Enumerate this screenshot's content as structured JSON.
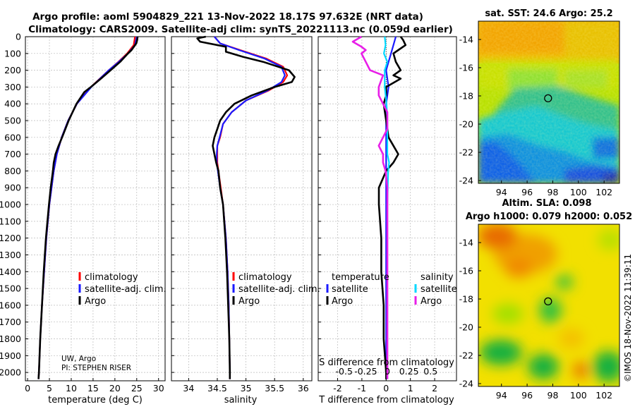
{
  "header": {
    "line1": "Argo profile: aoml 5904829_221 13-Nov-2022 18.17S 97.632E (NRT data)",
    "line2": "Climatology: CARS2009. Satellite-adj clim: synTS_20221113.nc (0.059d earlier)"
  },
  "side_label": "©IMOS 18-Nov-2022 11:39:11",
  "colors": {
    "climatology": "#ff0000",
    "satellite_clim": "#1a1aff",
    "argo": "#000000",
    "t_sat": "#1a1aff",
    "s_sat": "#00d8ff",
    "s_argo": "#e81ee8"
  },
  "chart_data": [
    {
      "id": "temperature",
      "type": "line",
      "xlabel": "temperature (deg C)",
      "ylabel": "",
      "xlim": [
        -0.5,
        31.5
      ],
      "ylim": [
        2050,
        0
      ],
      "xticks": [
        0,
        5,
        10,
        15,
        20,
        25,
        30
      ],
      "yticks": [
        0,
        100,
        200,
        300,
        400,
        500,
        600,
        700,
        800,
        900,
        1000,
        1100,
        1200,
        1300,
        1400,
        1500,
        1600,
        1700,
        1800,
        1900,
        2000
      ],
      "legend": [
        "climatology",
        "satellite-adj. clim.",
        "Argo"
      ],
      "annotation": [
        "UW, Argo",
        "PI: STEPHEN RISER"
      ],
      "series": [
        {
          "name": "climatology",
          "depth": [
            0,
            50,
            100,
            150,
            200,
            300,
            400,
            500,
            600,
            700,
            800,
            1000,
            1200,
            1400,
            1600,
            1800,
            2000,
            2040
          ],
          "values": [
            24.6,
            24.3,
            22.8,
            20.8,
            18.6,
            14.5,
            11.3,
            9.3,
            7.8,
            6.7,
            6.0,
            5.0,
            4.3,
            3.8,
            3.3,
            2.9,
            2.6,
            2.5
          ]
        },
        {
          "name": "satellite-adj. clim.",
          "depth": [
            0,
            50,
            100,
            150,
            200,
            300,
            400,
            500,
            600,
            700,
            800,
            1000,
            1200,
            1400,
            1600,
            1800,
            2000,
            2040
          ],
          "values": [
            25.0,
            24.6,
            23.0,
            20.9,
            18.6,
            14.6,
            11.3,
            9.3,
            7.8,
            6.7,
            6.0,
            5.0,
            4.3,
            3.8,
            3.3,
            2.9,
            2.6,
            2.5
          ]
        },
        {
          "name": "Argo",
          "depth": [
            0,
            20,
            40,
            80,
            100,
            150,
            200,
            250,
            300,
            330,
            400,
            500,
            600,
            650,
            700,
            750,
            800,
            900,
            1000,
            1200,
            1400,
            1600,
            1800,
            2000,
            2040
          ],
          "values": [
            25.2,
            25.1,
            24.9,
            23.8,
            23.0,
            21.2,
            19.0,
            16.8,
            14.5,
            13.0,
            11.2,
            9.4,
            7.9,
            7.1,
            6.4,
            6.0,
            5.8,
            5.3,
            4.9,
            4.2,
            3.7,
            3.3,
            2.9,
            2.6,
            2.5
          ]
        }
      ]
    },
    {
      "id": "salinity",
      "type": "line",
      "xlabel": "salinity",
      "xlim": [
        33.7,
        36.15
      ],
      "ylim": [
        2050,
        0
      ],
      "xticks": [
        34,
        34.5,
        35,
        35.5,
        36
      ],
      "legend": [
        "climatology",
        "satellite-adj. clim.",
        "Argo"
      ],
      "series": [
        {
          "name": "climatology",
          "depth": [
            0,
            40,
            80,
            130,
            180,
            230,
            270,
            320,
            380,
            450,
            520,
            600,
            650,
            700,
            750,
            800,
            900,
            1000,
            1200,
            1400,
            1600,
            1800,
            2000,
            2040
          ],
          "values": [
            34.45,
            34.55,
            34.9,
            35.35,
            35.65,
            35.72,
            35.65,
            35.4,
            35.0,
            34.75,
            34.6,
            34.55,
            34.5,
            34.5,
            34.5,
            34.52,
            34.56,
            34.6,
            34.65,
            34.68,
            34.7,
            34.71,
            34.72,
            34.72
          ]
        },
        {
          "name": "satellite-adj. clim.",
          "depth": [
            0,
            40,
            80,
            130,
            180,
            230,
            270,
            320,
            380,
            450,
            520,
            600,
            650,
            700,
            750,
            800,
            900,
            1000,
            1200,
            1400,
            1600,
            1800,
            2000,
            2040
          ],
          "values": [
            34.45,
            34.55,
            34.88,
            35.32,
            35.62,
            35.68,
            35.62,
            35.38,
            35.0,
            34.75,
            34.6,
            34.54,
            34.5,
            34.49,
            34.49,
            34.51,
            34.55,
            34.6,
            34.65,
            34.68,
            34.7,
            34.71,
            34.72,
            34.72
          ]
        },
        {
          "name": "Argo",
          "depth": [
            0,
            10,
            30,
            60,
            90,
            120,
            150,
            200,
            240,
            270,
            300,
            350,
            400,
            450,
            500,
            550,
            600,
            650,
            700,
            750,
            800,
            900,
            1000,
            1200,
            1400,
            1600,
            1800,
            2000,
            2040
          ],
          "values": [
            34.3,
            34.15,
            34.2,
            34.65,
            34.65,
            34.95,
            35.3,
            35.75,
            35.85,
            35.8,
            35.5,
            35.1,
            34.8,
            34.65,
            34.55,
            34.5,
            34.45,
            34.42,
            34.45,
            34.48,
            34.52,
            34.55,
            34.6,
            34.64,
            34.67,
            34.69,
            34.71,
            34.72,
            34.72
          ]
        }
      ]
    },
    {
      "id": "difference",
      "type": "line",
      "xlabel": "T difference from climatology",
      "xlabel_top": "S difference from climatology",
      "xlim": [
        -2.8,
        2.9
      ],
      "ylim": [
        2050,
        0
      ],
      "xticks": [
        -2,
        -1,
        0,
        1,
        2
      ],
      "xticks_s": [
        -0.5,
        -0.25,
        0,
        0.25,
        0.5
      ],
      "xticks_s_labels": [
        "-0.5",
        "-0.25",
        "0",
        "0.25",
        "0.5"
      ],
      "legend_titles": [
        "temperature",
        "salinity"
      ],
      "legend_left": [
        "satellite",
        "Argo"
      ],
      "legend_right": [
        "satellite",
        "Argo"
      ],
      "series": [
        {
          "name": "T satellite",
          "depth": [
            0,
            50,
            100,
            150,
            200,
            300,
            400,
            500,
            600,
            700,
            800,
            1000,
            2040
          ],
          "values": [
            0.4,
            0.3,
            0.2,
            0.1,
            0.0,
            0.1,
            0.0,
            0.0,
            0.0,
            0.0,
            0.0,
            0.0,
            0.0
          ]
        },
        {
          "name": "T Argo",
          "depth": [
            0,
            20,
            50,
            80,
            100,
            150,
            200,
            230,
            250,
            300,
            350,
            400,
            500,
            600,
            650,
            700,
            750,
            800,
            900,
            1000,
            1200,
            1400,
            1600,
            1800,
            2000,
            2040
          ],
          "values": [
            0.6,
            0.7,
            0.8,
            0.5,
            0.3,
            0.4,
            0.6,
            0.3,
            0.6,
            0.0,
            0.0,
            -0.1,
            0.0,
            0.1,
            0.3,
            0.5,
            0.3,
            0.0,
            -0.3,
            -0.3,
            -0.2,
            -0.2,
            -0.1,
            -0.1,
            0.0,
            0.0
          ]
        },
        {
          "name": "S satellite",
          "depth": [
            0,
            50,
            100,
            150,
            200,
            300,
            400,
            500,
            600,
            700,
            750,
            800,
            1000,
            2040
          ],
          "values": [
            -0.03,
            -0.02,
            -0.04,
            0.0,
            -0.03,
            -0.03,
            -0.01,
            0.0,
            0.0,
            0.0,
            0.02,
            0.01,
            0.0,
            0.0
          ]
        },
        {
          "name": "S Argo",
          "depth": [
            0,
            30,
            60,
            80,
            100,
            150,
            200,
            230,
            300,
            350,
            400,
            450,
            500,
            550,
            600,
            650,
            700,
            750,
            800,
            900,
            1000,
            1200,
            1400,
            1600,
            1800,
            2000,
            2040
          ],
          "values": [
            -0.3,
            -0.4,
            -0.3,
            -0.25,
            -0.3,
            -0.25,
            -0.2,
            -0.05,
            -0.1,
            -0.1,
            -0.05,
            0.0,
            0.0,
            0.0,
            -0.05,
            -0.1,
            -0.05,
            -0.05,
            -0.02,
            0.0,
            0.0,
            0.0,
            0.0,
            0.0,
            0.0,
            0.0,
            0.0
          ]
        }
      ]
    },
    {
      "id": "sst_map",
      "type": "heatmap",
      "title": "sat. SST: 24.6 Argo: 25.2",
      "xlim": [
        92.2,
        103.2
      ],
      "ylim": [
        -24.2,
        -12.7
      ],
      "xticks": [
        94,
        96,
        98,
        100,
        102
      ],
      "yticks": [
        -14,
        -16,
        -18,
        -20,
        -22,
        -24
      ],
      "marker": {
        "lon": 97.632,
        "lat": -18.17
      }
    },
    {
      "id": "sla_map",
      "type": "heatmap",
      "title": "Altim. SLA: 0.098",
      "subtitle": "Argo h1000: 0.079 h2000: 0.052",
      "xlim": [
        92.2,
        103.2
      ],
      "ylim": [
        -24.2,
        -12.7
      ],
      "xticks": [
        94,
        96,
        98,
        100,
        102
      ],
      "yticks": [
        -14,
        -16,
        -18,
        -20,
        -22,
        -24
      ],
      "marker": {
        "lon": 97.632,
        "lat": -18.17
      }
    }
  ]
}
